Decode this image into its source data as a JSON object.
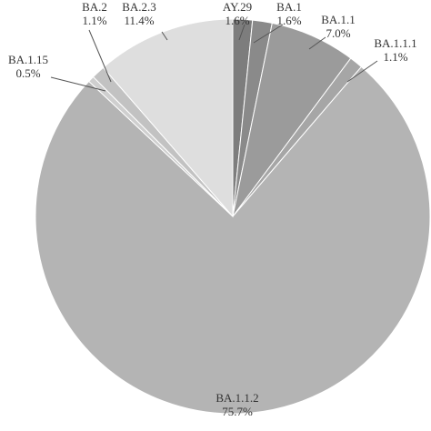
{
  "chart_data": {
    "type": "pie",
    "start_angle_deg": 0,
    "direction": "clockwise",
    "slices": [
      {
        "label": "AY.29",
        "value": 1.6,
        "pct": "1.6%",
        "color": "#7d7d7d"
      },
      {
        "label": "BA.1",
        "value": 1.6,
        "pct": "1.6%",
        "color": "#8a8a8a"
      },
      {
        "label": "BA.1.1",
        "value": 7.0,
        "pct": "7.0%",
        "color": "#9b9b9b"
      },
      {
        "label": "BA.1.1.1",
        "value": 1.1,
        "pct": "1.1%",
        "color": "#a6a6a6"
      },
      {
        "label": "BA.1.1.2",
        "value": 75.7,
        "pct": "75.7%",
        "color": "#b4b4b4"
      },
      {
        "label": "BA.1.15",
        "value": 0.5,
        "pct": "0.5%",
        "color": "#cfcfcf"
      },
      {
        "label": "BA.2",
        "value": 1.1,
        "pct": "1.1%",
        "color": "#c2c2c2"
      },
      {
        "label": "BA.2.3",
        "value": 11.4,
        "pct": "11.4%",
        "color": "#dedede"
      }
    ]
  }
}
